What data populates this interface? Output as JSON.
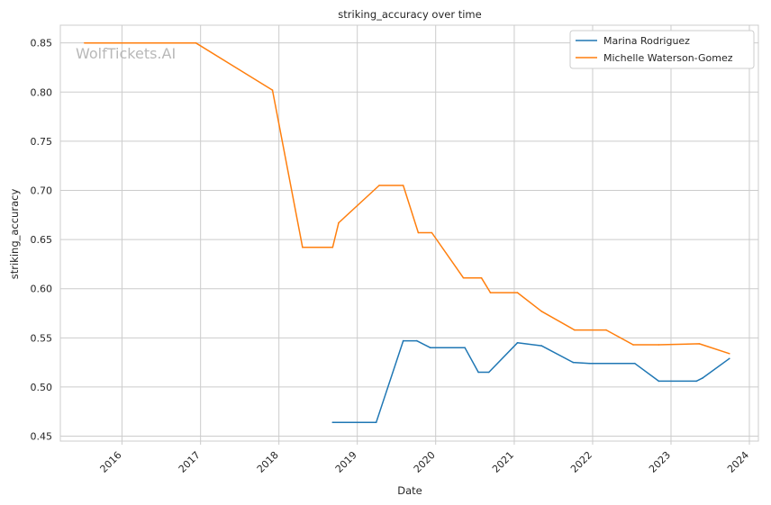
{
  "chart_data": {
    "type": "line",
    "title": "striking_accuracy over time",
    "xlabel": "Date",
    "ylabel": "striking_accuracy",
    "x_ticks": [
      "2016",
      "2017",
      "2018",
      "2019",
      "2020",
      "2021",
      "2022",
      "2023",
      "2024"
    ],
    "y_ticks": [
      "0.45",
      "0.50",
      "0.55",
      "0.60",
      "0.65",
      "0.70",
      "0.75",
      "0.80",
      "0.85"
    ],
    "xlim": [
      "2015-03-20",
      "2024-02-12"
    ],
    "ylim": [
      0.445,
      0.868
    ],
    "grid": true,
    "legend_position": "top-right",
    "watermark": "WolfTickets.AI",
    "series": [
      {
        "name": "Marina Rodriguez",
        "color": "#1f77b4",
        "points": [
          [
            "2018-09-08",
            0.464
          ],
          [
            "2019-03-30",
            0.464
          ],
          [
            "2019-08-03",
            0.547
          ],
          [
            "2019-10-05",
            0.547
          ],
          [
            "2019-12-07",
            0.54
          ],
          [
            "2020-05-16",
            0.54
          ],
          [
            "2020-07-18",
            0.515
          ],
          [
            "2020-09-05",
            0.515
          ],
          [
            "2021-01-16",
            0.545
          ],
          [
            "2021-05-08",
            0.542
          ],
          [
            "2021-10-02",
            0.525
          ],
          [
            "2021-12-18",
            0.524
          ],
          [
            "2022-07-16",
            0.524
          ],
          [
            "2022-11-05",
            0.506
          ],
          [
            "2023-04-29",
            0.506
          ],
          [
            "2023-05-27",
            0.509
          ],
          [
            "2023-09-30",
            0.529
          ]
        ]
      },
      {
        "name": "Michelle Waterson-Gomez",
        "color": "#ff7f0e",
        "points": [
          [
            "2015-07-11",
            0.85
          ],
          [
            "2016-12-10",
            0.85
          ],
          [
            "2017-12-02",
            0.802
          ],
          [
            "2018-04-21",
            0.642
          ],
          [
            "2018-09-08",
            0.642
          ],
          [
            "2018-10-06",
            0.667
          ],
          [
            "2019-04-13",
            0.705
          ],
          [
            "2019-08-03",
            0.705
          ],
          [
            "2019-10-12",
            0.657
          ],
          [
            "2019-12-14",
            0.657
          ],
          [
            "2020-05-09",
            0.611
          ],
          [
            "2020-08-01",
            0.611
          ],
          [
            "2020-09-12",
            0.596
          ],
          [
            "2021-01-16",
            0.596
          ],
          [
            "2021-05-08",
            0.577
          ],
          [
            "2021-10-09",
            0.558
          ],
          [
            "2022-03-05",
            0.558
          ],
          [
            "2022-07-09",
            0.543
          ],
          [
            "2022-11-05",
            0.543
          ],
          [
            "2023-05-13",
            0.544
          ],
          [
            "2023-09-30",
            0.534
          ]
        ]
      }
    ]
  }
}
